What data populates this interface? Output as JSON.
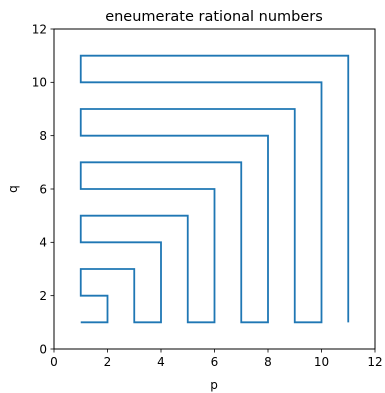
{
  "chart_data": {
    "type": "line",
    "title": "eneumerate rational numbers",
    "xlabel": "p",
    "ylabel": "q",
    "xlim": [
      0,
      12
    ],
    "ylim": [
      0,
      12
    ],
    "x_ticks": [
      0,
      2,
      4,
      6,
      8,
      10,
      12
    ],
    "y_ticks": [
      0,
      2,
      4,
      6,
      8,
      10,
      12
    ],
    "grid": false,
    "legend": "none",
    "series": [
      {
        "color": "#1f77b4",
        "points": [
          [
            1,
            1
          ],
          [
            2,
            1
          ],
          [
            2,
            2
          ],
          [
            1,
            2
          ],
          [
            1,
            3
          ],
          [
            3,
            3
          ],
          [
            3,
            1
          ],
          [
            4,
            1
          ],
          [
            4,
            4
          ],
          [
            1,
            4
          ],
          [
            1,
            5
          ],
          [
            5,
            5
          ],
          [
            5,
            1
          ],
          [
            6,
            1
          ],
          [
            6,
            6
          ],
          [
            1,
            6
          ],
          [
            1,
            7
          ],
          [
            7,
            7
          ],
          [
            7,
            1
          ],
          [
            8,
            1
          ],
          [
            8,
            8
          ],
          [
            1,
            8
          ],
          [
            1,
            9
          ],
          [
            9,
            9
          ],
          [
            9,
            1
          ],
          [
            10,
            1
          ],
          [
            10,
            10
          ],
          [
            1,
            10
          ],
          [
            1,
            11
          ],
          [
            11,
            11
          ],
          [
            11,
            1
          ]
        ]
      }
    ]
  }
}
